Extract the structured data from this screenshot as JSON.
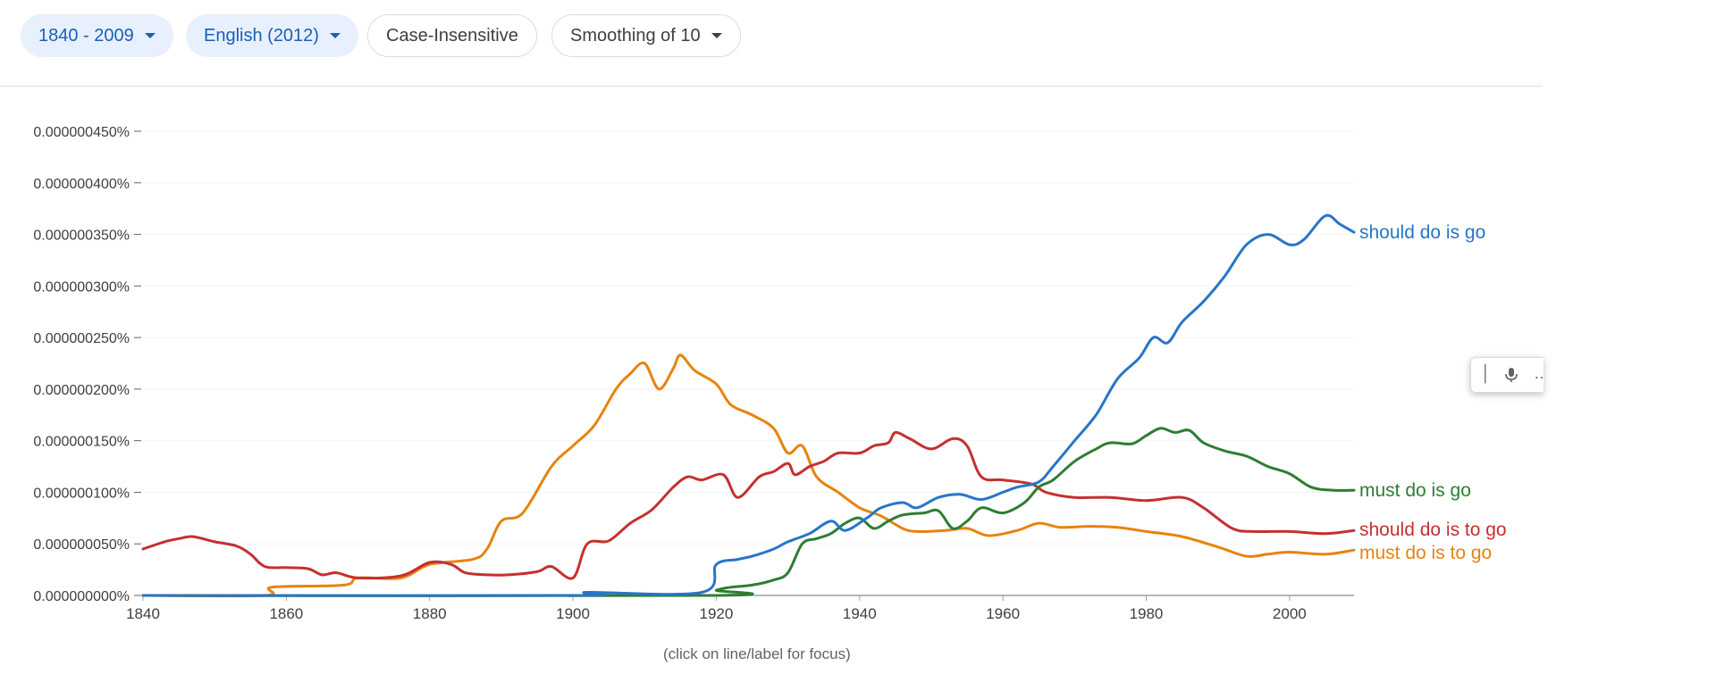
{
  "toolbar": {
    "year_range": "1840 - 2009",
    "corpus": "English (2012)",
    "case": "Case-Insensitive",
    "smoothing": "Smoothing of 10"
  },
  "hint": "(click on line/label for focus)",
  "widget": {
    "icons": [
      "text-cursor-icon",
      "microphone-icon",
      "more-icon"
    ]
  },
  "chart_data": {
    "type": "line",
    "title": "",
    "xlabel": "",
    "ylabel": "",
    "xlim": [
      1840,
      2009
    ],
    "ylim": [
      0,
      4.5e-09
    ],
    "x_ticks": [
      1840,
      1860,
      1880,
      1900,
      1920,
      1940,
      1960,
      1980,
      2000
    ],
    "y_ticks": [
      {
        "value": 0,
        "label": "0.000000000%"
      },
      {
        "value": 5e-10,
        "label": "0.000000050%"
      },
      {
        "value": 1e-09,
        "label": "0.000000100%"
      },
      {
        "value": 1.5e-09,
        "label": "0.000000150%"
      },
      {
        "value": 2e-09,
        "label": "0.000000200%"
      },
      {
        "value": 2.5e-09,
        "label": "0.000000250%"
      },
      {
        "value": 3e-09,
        "label": "0.000000300%"
      },
      {
        "value": 3.5e-09,
        "label": "0.000000350%"
      },
      {
        "value": 4e-09,
        "label": "0.000000400%"
      },
      {
        "value": 4.5e-09,
        "label": "0.000000450%"
      }
    ],
    "grid": true,
    "legend": "labels at line ends",
    "series": [
      {
        "name": "must do is to go",
        "color": "#e8830c",
        "points": [
          [
            1840,
            0
          ],
          [
            1857,
            0
          ],
          [
            1858,
            8e-11
          ],
          [
            1868,
            1e-10
          ],
          [
            1870,
            1.7e-10
          ],
          [
            1876,
            1.7e-10
          ],
          [
            1880,
            3e-10
          ],
          [
            1886,
            3.5e-10
          ],
          [
            1888,
            4.5e-10
          ],
          [
            1890,
            7.2e-10
          ],
          [
            1893,
            8e-10
          ],
          [
            1897,
            1.25e-09
          ],
          [
            1900,
            1.45e-09
          ],
          [
            1903,
            1.65e-09
          ],
          [
            1906,
            2e-09
          ],
          [
            1908,
            2.15e-09
          ],
          [
            1910,
            2.25e-09
          ],
          [
            1912,
            2e-09
          ],
          [
            1914,
            2.2e-09
          ],
          [
            1915,
            2.33e-09
          ],
          [
            1917,
            2.18e-09
          ],
          [
            1920,
            2.05e-09
          ],
          [
            1922,
            1.85e-09
          ],
          [
            1925,
            1.75e-09
          ],
          [
            1928,
            1.62e-09
          ],
          [
            1930,
            1.38e-09
          ],
          [
            1932,
            1.45e-09
          ],
          [
            1934,
            1.15e-09
          ],
          [
            1937,
            1e-09
          ],
          [
            1940,
            8.5e-10
          ],
          [
            1943,
            7.7e-10
          ],
          [
            1946,
            6.5e-10
          ],
          [
            1948,
            6.2e-10
          ],
          [
            1952,
            6.3e-10
          ],
          [
            1955,
            6.5e-10
          ],
          [
            1958,
            5.8e-10
          ],
          [
            1962,
            6.3e-10
          ],
          [
            1965,
            7e-10
          ],
          [
            1968,
            6.6e-10
          ],
          [
            1972,
            6.7e-10
          ],
          [
            1976,
            6.6e-10
          ],
          [
            1980,
            6.2e-10
          ],
          [
            1985,
            5.7e-10
          ],
          [
            1990,
            4.7e-10
          ],
          [
            1994,
            3.8e-10
          ],
          [
            1997,
            4e-10
          ],
          [
            2000,
            4.2e-10
          ],
          [
            2005,
            4e-10
          ],
          [
            2009,
            4.4e-10
          ]
        ]
      },
      {
        "name": "should do is to go",
        "color": "#c5302f",
        "points": [
          [
            1840,
            4.5e-10
          ],
          [
            1843,
            5.2e-10
          ],
          [
            1845,
            5.5e-10
          ],
          [
            1847,
            5.7e-10
          ],
          [
            1850,
            5.2e-10
          ],
          [
            1853,
            4.8e-10
          ],
          [
            1855,
            4e-10
          ],
          [
            1857,
            2.8e-10
          ],
          [
            1860,
            2.7e-10
          ],
          [
            1863,
            2.6e-10
          ],
          [
            1865,
            2e-10
          ],
          [
            1867,
            2.2e-10
          ],
          [
            1870,
            1.7e-10
          ],
          [
            1876,
            1.9e-10
          ],
          [
            1880,
            3.2e-10
          ],
          [
            1883,
            3e-10
          ],
          [
            1885,
            2.2e-10
          ],
          [
            1888,
            2e-10
          ],
          [
            1891,
            2e-10
          ],
          [
            1895,
            2.3e-10
          ],
          [
            1897,
            2.8e-10
          ],
          [
            1900,
            1.7e-10
          ],
          [
            1902,
            5e-10
          ],
          [
            1905,
            5.3e-10
          ],
          [
            1908,
            7e-10
          ],
          [
            1911,
            8.3e-10
          ],
          [
            1914,
            1.05e-09
          ],
          [
            1916,
            1.15e-09
          ],
          [
            1918,
            1.12e-09
          ],
          [
            1921,
            1.17e-09
          ],
          [
            1923,
            9.5e-10
          ],
          [
            1926,
            1.15e-09
          ],
          [
            1928,
            1.2e-09
          ],
          [
            1930,
            1.28e-09
          ],
          [
            1931,
            1.17e-09
          ],
          [
            1933,
            1.25e-09
          ],
          [
            1935,
            1.3e-09
          ],
          [
            1937,
            1.38e-09
          ],
          [
            1940,
            1.38e-09
          ],
          [
            1942,
            1.45e-09
          ],
          [
            1944,
            1.48e-09
          ],
          [
            1945,
            1.58e-09
          ],
          [
            1947,
            1.52e-09
          ],
          [
            1950,
            1.42e-09
          ],
          [
            1953,
            1.52e-09
          ],
          [
            1955,
            1.45e-09
          ],
          [
            1957,
            1.15e-09
          ],
          [
            1960,
            1.12e-09
          ],
          [
            1964,
            1.08e-09
          ],
          [
            1966,
            1e-09
          ],
          [
            1970,
            9.5e-10
          ],
          [
            1975,
            9.5e-10
          ],
          [
            1980,
            9.2e-10
          ],
          [
            1985,
            9.5e-10
          ],
          [
            1988,
            8.5e-10
          ],
          [
            1992,
            6.5e-10
          ],
          [
            1995,
            6.2e-10
          ],
          [
            2000,
            6.2e-10
          ],
          [
            2005,
            6e-10
          ],
          [
            2009,
            6.3e-10
          ]
        ]
      },
      {
        "name": "must do is go",
        "color": "#2e7d32",
        "points": [
          [
            1840,
            0
          ],
          [
            1919,
            0
          ],
          [
            1920,
            5e-11
          ],
          [
            1922,
            8e-11
          ],
          [
            1925,
            1e-10
          ],
          [
            1928,
            1.5e-10
          ],
          [
            1930,
            2.2e-10
          ],
          [
            1932,
            5e-10
          ],
          [
            1934,
            5.5e-10
          ],
          [
            1936,
            6e-10
          ],
          [
            1938,
            7e-10
          ],
          [
            1940,
            7.5e-10
          ],
          [
            1942,
            6.5e-10
          ],
          [
            1944,
            7.2e-10
          ],
          [
            1946,
            7.8e-10
          ],
          [
            1949,
            8e-10
          ],
          [
            1951,
            8.2e-10
          ],
          [
            1953,
            6.5e-10
          ],
          [
            1955,
            7.2e-10
          ],
          [
            1957,
            8.5e-10
          ],
          [
            1960,
            8e-10
          ],
          [
            1963,
            9e-10
          ],
          [
            1965,
            1.05e-09
          ],
          [
            1967,
            1.12e-09
          ],
          [
            1970,
            1.3e-09
          ],
          [
            1973,
            1.42e-09
          ],
          [
            1975,
            1.48e-09
          ],
          [
            1978,
            1.47e-09
          ],
          [
            1980,
            1.55e-09
          ],
          [
            1982,
            1.62e-09
          ],
          [
            1984,
            1.58e-09
          ],
          [
            1986,
            1.6e-09
          ],
          [
            1988,
            1.48e-09
          ],
          [
            1991,
            1.4e-09
          ],
          [
            1994,
            1.35e-09
          ],
          [
            1997,
            1.25e-09
          ],
          [
            2000,
            1.18e-09
          ],
          [
            2003,
            1.05e-09
          ],
          [
            2006,
            1.02e-09
          ],
          [
            2009,
            1.02e-09
          ]
        ]
      },
      {
        "name": "should do is go",
        "color": "#2775c9",
        "points": [
          [
            1840,
            0
          ],
          [
            1900,
            0
          ],
          [
            1902,
            3e-11
          ],
          [
            1918,
            3e-11
          ],
          [
            1920,
            3e-10
          ],
          [
            1923,
            3.5e-10
          ],
          [
            1925,
            3.8e-10
          ],
          [
            1928,
            4.5e-10
          ],
          [
            1930,
            5.2e-10
          ],
          [
            1933,
            6e-10
          ],
          [
            1936,
            7.2e-10
          ],
          [
            1938,
            6.3e-10
          ],
          [
            1941,
            7.5e-10
          ],
          [
            1943,
            8.5e-10
          ],
          [
            1946,
            9e-10
          ],
          [
            1948,
            8.5e-10
          ],
          [
            1951,
            9.5e-10
          ],
          [
            1954,
            9.8e-10
          ],
          [
            1957,
            9.3e-10
          ],
          [
            1960,
            1e-09
          ],
          [
            1962,
            1.05e-09
          ],
          [
            1965,
            1.1e-09
          ],
          [
            1967,
            1.25e-09
          ],
          [
            1970,
            1.5e-09
          ],
          [
            1973,
            1.75e-09
          ],
          [
            1976,
            2.1e-09
          ],
          [
            1979,
            2.3e-09
          ],
          [
            1981,
            2.5e-09
          ],
          [
            1983,
            2.45e-09
          ],
          [
            1985,
            2.65e-09
          ],
          [
            1988,
            2.85e-09
          ],
          [
            1991,
            3.1e-09
          ],
          [
            1994,
            3.4e-09
          ],
          [
            1997,
            3.5e-09
          ],
          [
            2000,
            3.4e-09
          ],
          [
            2002,
            3.45e-09
          ],
          [
            2005,
            3.68e-09
          ],
          [
            2007,
            3.6e-09
          ],
          [
            2009,
            3.52e-09
          ]
        ]
      }
    ],
    "end_labels": [
      {
        "name": "should do is go",
        "y": 3.52e-09
      },
      {
        "name": "must do is go",
        "y": 1.02e-09
      },
      {
        "name": "should do is to go",
        "y": 6.3e-10
      },
      {
        "name": "must do is to go",
        "y": 4.4e-10
      }
    ]
  }
}
